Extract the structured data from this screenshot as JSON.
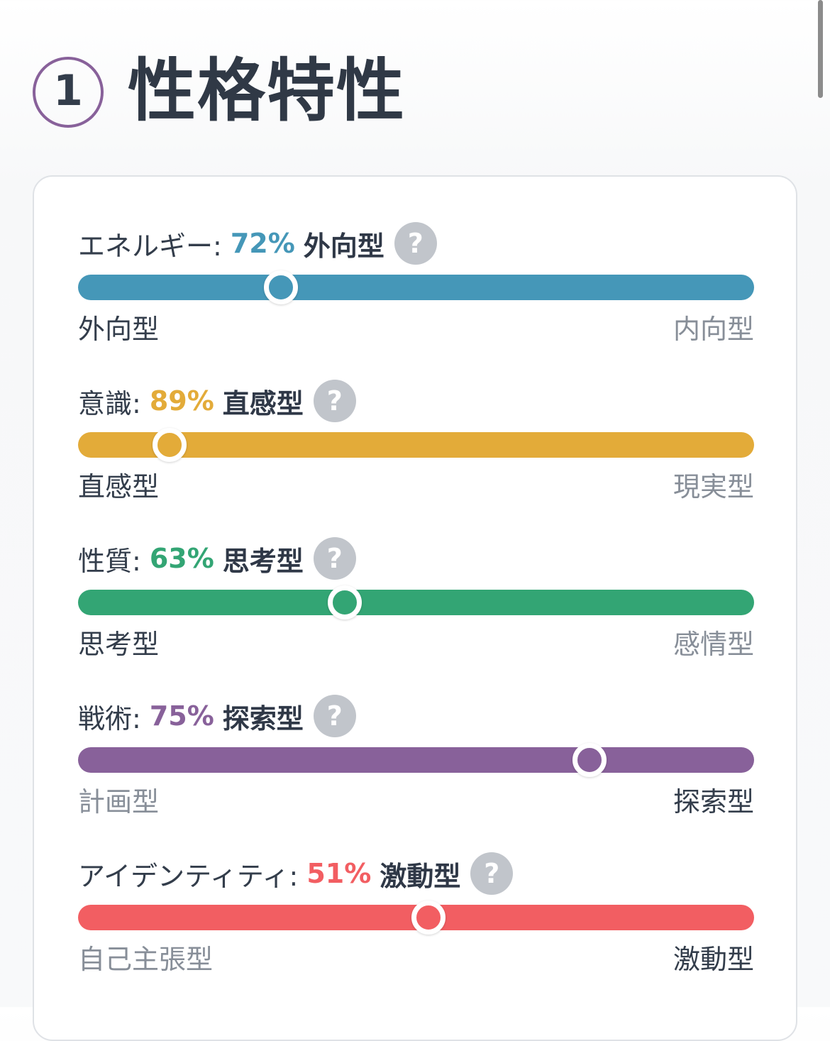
{
  "section": {
    "number": "1",
    "title": "性格特性"
  },
  "traits": [
    {
      "label": "エネルギー:",
      "percent": "72%",
      "type": "外向型",
      "color": "#4597b8",
      "level": 0.3,
      "left_label": "外向型",
      "right_label": "内向型",
      "active_side": "left"
    },
    {
      "label": "意識:",
      "percent": "89%",
      "type": "直感型",
      "color": "#e3ab39",
      "level": 0.135,
      "left_label": "直感型",
      "right_label": "現実型",
      "active_side": "left"
    },
    {
      "label": "性質:",
      "percent": "63%",
      "type": "思考型",
      "color": "#33a574",
      "level": 0.395,
      "left_label": "思考型",
      "right_label": "感情型",
      "active_side": "left"
    },
    {
      "label": "戦術:",
      "percent": "75%",
      "type": "探索型",
      "color": "#88619a",
      "level": 0.757,
      "left_label": "計画型",
      "right_label": "探索型",
      "active_side": "right"
    },
    {
      "label": "アイデンティティ:",
      "percent": "51%",
      "type": "激動型",
      "color": "#f25e62",
      "level": 0.518,
      "left_label": "自己主張型",
      "right_label": "激動型",
      "active_side": "right"
    }
  ],
  "help_glyph": "?",
  "help_icon": "question-mark-icon"
}
